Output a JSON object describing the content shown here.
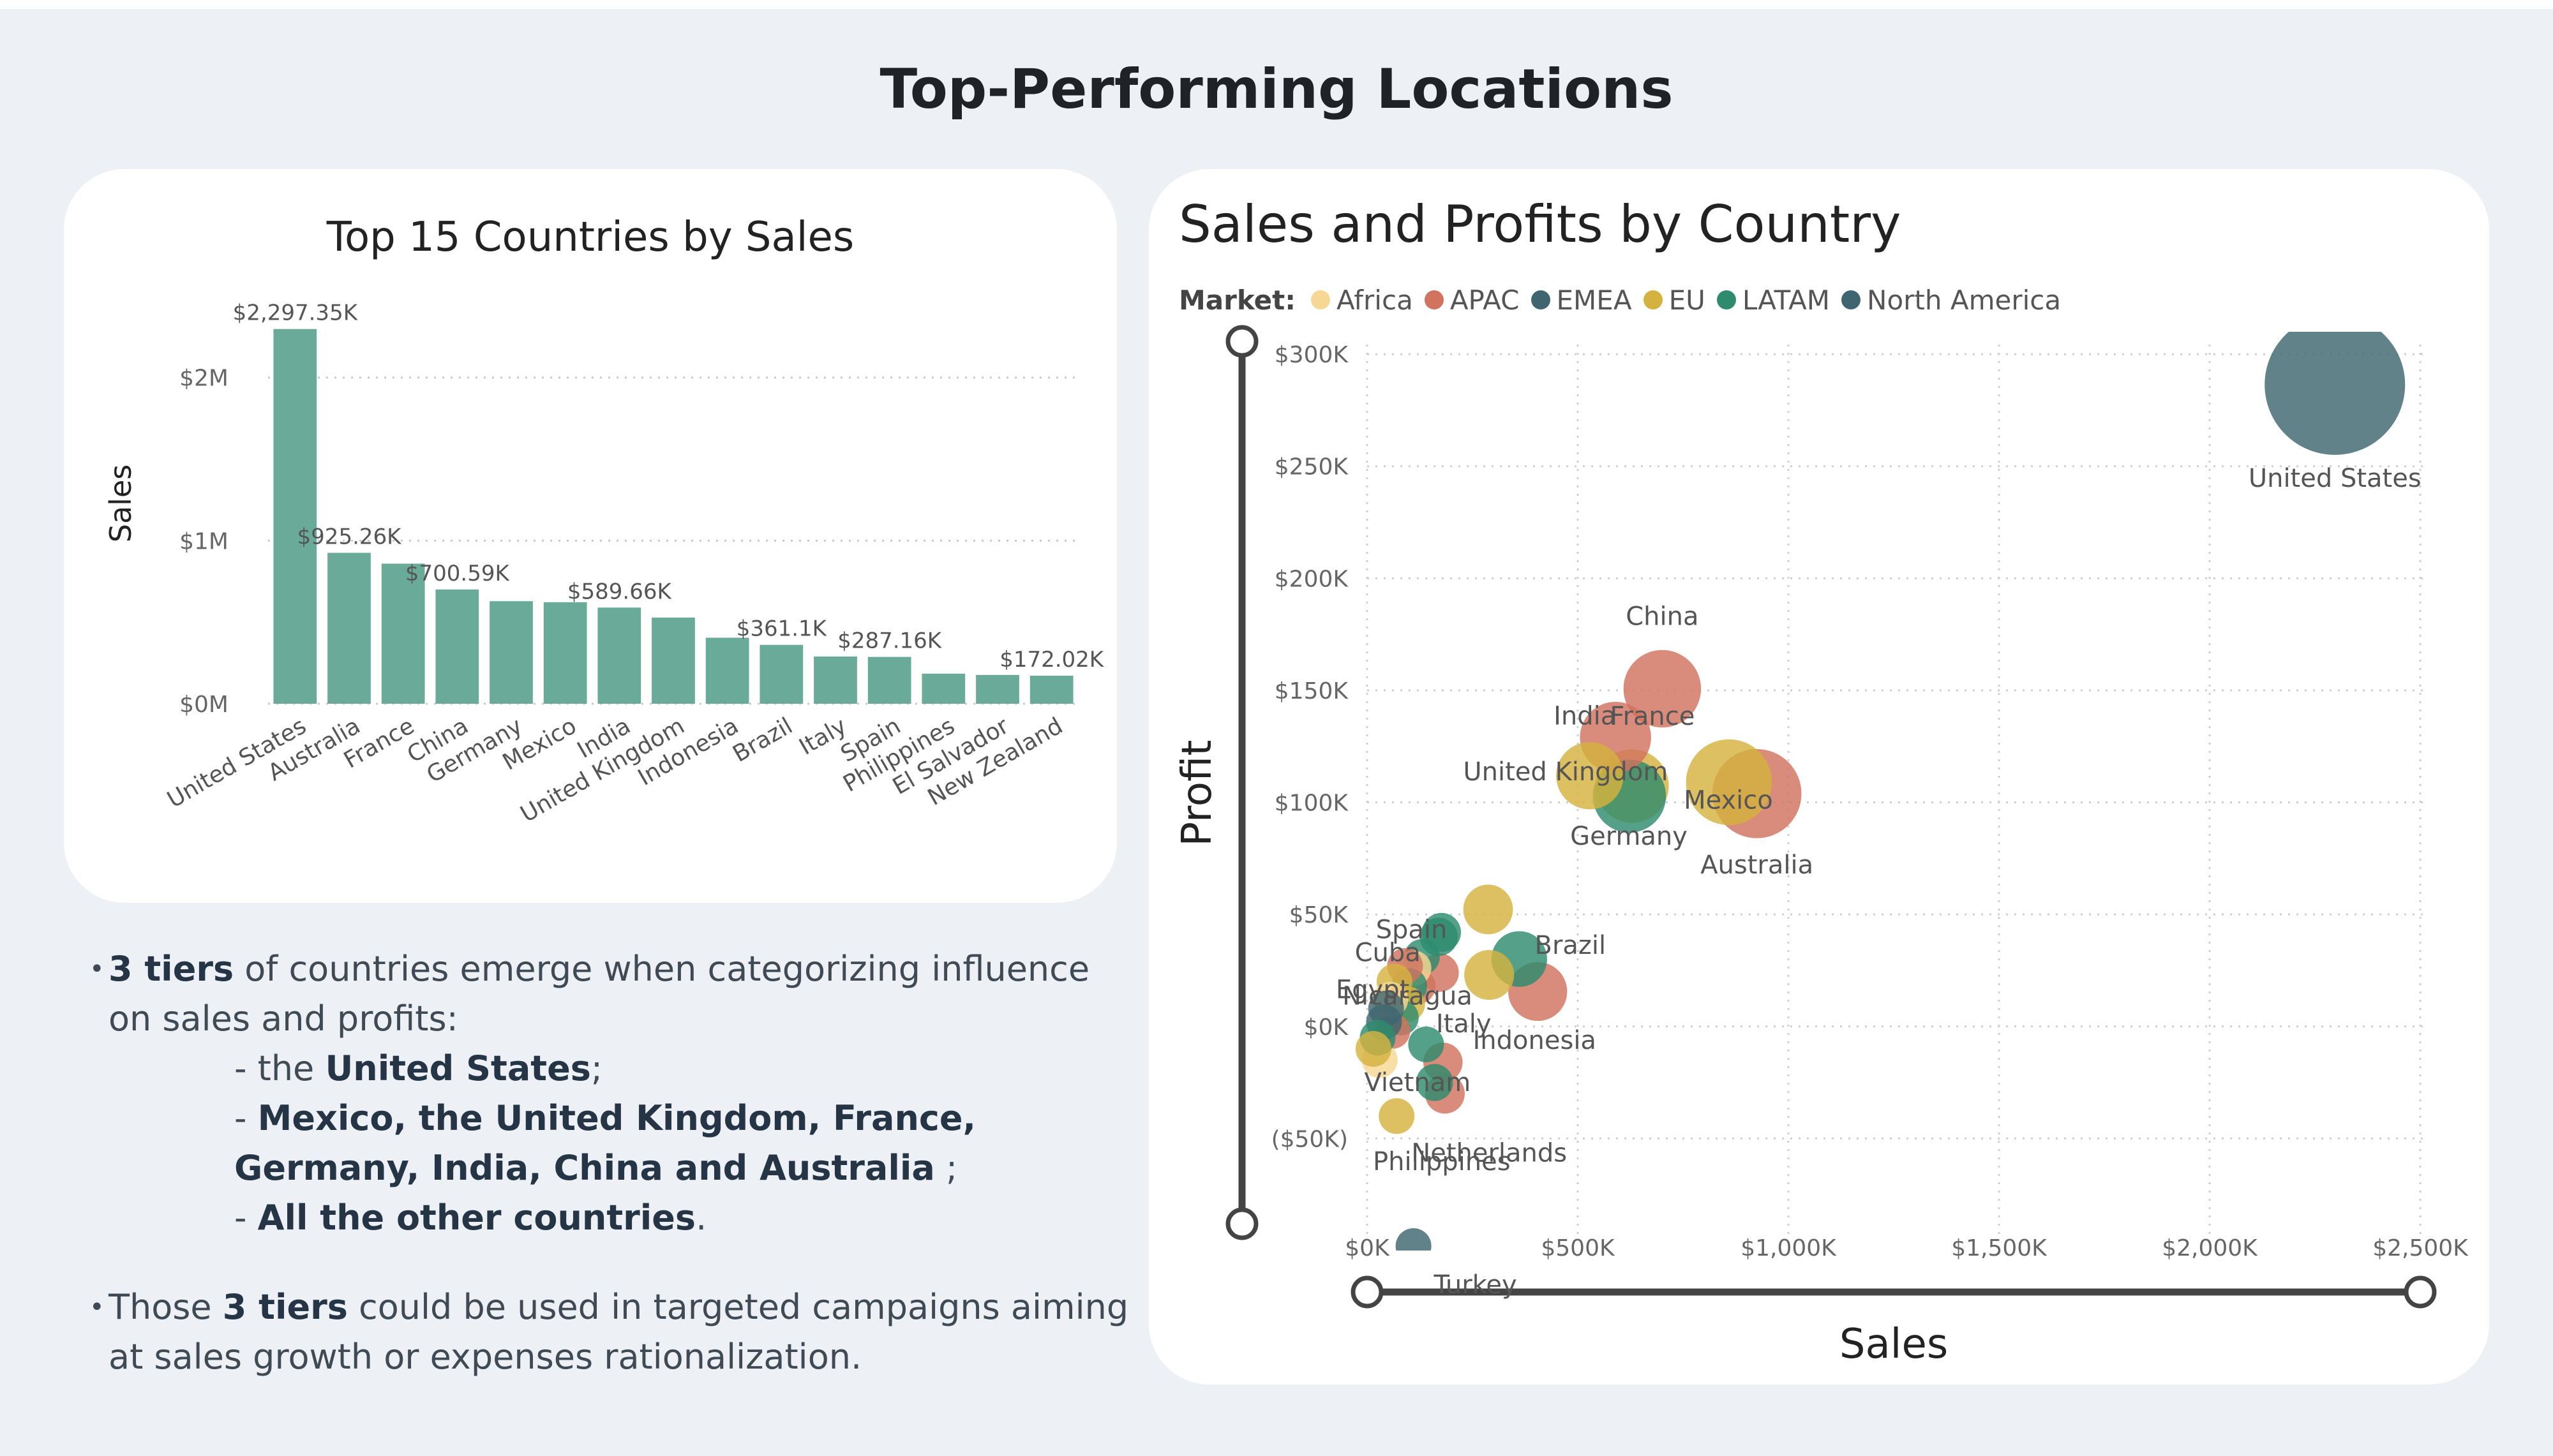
{
  "page": {
    "title": "Top-Performing Locations"
  },
  "bar_chart_card": {
    "title": "Top 15 Countries by Sales"
  },
  "scatter_card": {
    "title": "Sales and Profits by Country",
    "legend_label": "Market:"
  },
  "notes": {
    "bullet": "•",
    "p1_bold": "3 tiers",
    "p1_rest": " of countries emerge when categorizing influence on sales and profits:",
    "tier1_prefix": "- the ",
    "tier1_bold": "United States",
    "tier1_suffix": ";",
    "tier2_prefix": "- ",
    "tier2_bold": "Mexico, the United Kingdom, France, Germany, India, China and Australia",
    "tier2_suffix": " ;",
    "tier3_prefix": "- ",
    "tier3_bold": "All the other countries",
    "tier3_suffix": ".",
    "p2_prefix": " Those ",
    "p2_bold": "3 tiers",
    "p2_rest": " could be used in targeted campaigns aiming at sales growth or expenses rationalization."
  },
  "colors": {
    "bar": "#69aa98",
    "Africa": "#f7d794",
    "APAC": "#d1735e",
    "EMEA": "#3f6670",
    "EU": "#d4b23f",
    "LATAM": "#2e8b6e",
    "North America": "#3f6670"
  },
  "chart_data": [
    {
      "type": "bar",
      "title": "Top 15 Countries by Sales",
      "ylabel": "Sales",
      "ylim": [
        0,
        2300000
      ],
      "y_ticks": [
        0,
        1000000,
        2000000
      ],
      "y_tick_labels": [
        "$0M",
        "$1M",
        "$2M"
      ],
      "grid": true,
      "categories": [
        "United States",
        "Australia",
        "France",
        "China",
        "Germany",
        "Mexico",
        "India",
        "United Kingdom",
        "Indonesia",
        "Brazil",
        "Italy",
        "Spain",
        "Philippines",
        "El Salvador",
        "New Zealand"
      ],
      "values": [
        2297350,
        925260,
        858930,
        700590,
        628840,
        622590,
        589660,
        528580,
        404890,
        361100,
        289710,
        287160,
        184570,
        176580,
        172020
      ],
      "data_labels": [
        "$2,297.35K",
        "$925.26K",
        "",
        "$700.59K",
        "",
        "",
        "$589.66K",
        "",
        "",
        "$361.1K",
        "",
        "$287.16K",
        "",
        "",
        "$172.02K"
      ]
    },
    {
      "type": "scatter",
      "title": "Sales and Profits by Country",
      "xlabel": "Sales",
      "ylabel": "Profit",
      "xlim": [
        0,
        2500000
      ],
      "ylim": [
        -100000,
        310000
      ],
      "x_ticks": [
        0,
        500000,
        1000000,
        1500000,
        2000000,
        2500000
      ],
      "x_tick_labels": [
        "$0K",
        "$500K",
        "$1,000K",
        "$1,500K",
        "$2,000K",
        "$2,500K"
      ],
      "y_ticks": [
        -50000,
        0,
        50000,
        100000,
        150000,
        200000,
        250000,
        300000
      ],
      "y_tick_labels": [
        "($50K)",
        "$0K",
        "$50K",
        "$100K",
        "$150K",
        "$200K",
        "$250K",
        "$300K"
      ],
      "legend": [
        "Africa",
        "APAC",
        "EMEA",
        "EU",
        "LATAM",
        "North America"
      ],
      "grid": true,
      "points": [
        {
          "name": "United States",
          "market": "North America",
          "x": 2297350,
          "y": 286400,
          "label": "United States"
        },
        {
          "name": "Australia",
          "market": "APAC",
          "x": 925260,
          "y": 103900,
          "label": "Australia"
        },
        {
          "name": "France",
          "market": "EU",
          "x": 858930,
          "y": 109000,
          "label": "France"
        },
        {
          "name": "China",
          "market": "APAC",
          "x": 700590,
          "y": 150700,
          "label": "China"
        },
        {
          "name": "Germany",
          "market": "EU",
          "x": 628840,
          "y": 107300,
          "label": "Germany"
        },
        {
          "name": "Mexico",
          "market": "LATAM",
          "x": 622590,
          "y": 102800,
          "label": "Mexico"
        },
        {
          "name": "India",
          "market": "APAC",
          "x": 589660,
          "y": 129000,
          "label": "India"
        },
        {
          "name": "United Kingdom",
          "market": "EU",
          "x": 528580,
          "y": 111900,
          "label": "United Kingdom"
        },
        {
          "name": "Indonesia",
          "market": "APAC",
          "x": 404890,
          "y": 15600,
          "label": "Indonesia"
        },
        {
          "name": "Brazil",
          "market": "LATAM",
          "x": 361100,
          "y": 30100,
          "label": "Brazil"
        },
        {
          "name": "Italy",
          "market": "EU",
          "x": 289710,
          "y": 23000,
          "label": "Italy"
        },
        {
          "name": "Spain",
          "market": "EU",
          "x": 287160,
          "y": 52200,
          "label": "Spain"
        },
        {
          "name": "Cuba",
          "market": "LATAM",
          "x": 170000,
          "y": 40000,
          "label": "Cuba"
        },
        {
          "name": "Egypt",
          "market": "Africa",
          "x": 110000,
          "y": 26000,
          "label": "Egypt"
        },
        {
          "name": "Nicaragua",
          "market": "LATAM",
          "x": 100000,
          "y": 18000,
          "label": "Nicaragua"
        },
        {
          "name": "Vietnam",
          "market": "APAC",
          "x": 180000,
          "y": -16000,
          "label": "Vietnam"
        },
        {
          "name": "Philippines",
          "market": "APAC",
          "x": 184570,
          "y": -30000,
          "label": "Philippines"
        },
        {
          "name": "Netherlands",
          "market": "EU",
          "x": 70000,
          "y": -40000,
          "label": "Netherlands"
        },
        {
          "name": "Turkey",
          "market": "EMEA",
          "x": 110000,
          "y": -98000,
          "label": "Turkey"
        },
        {
          "name": "El Salvador",
          "market": "LATAM",
          "x": 176580,
          "y": 42000,
          "label": ""
        },
        {
          "name": "New Zealand",
          "market": "APAC",
          "x": 172020,
          "y": 24000,
          "label": ""
        },
        {
          "name": "other-1",
          "market": "LATAM",
          "x": 130000,
          "y": 31000,
          "label": ""
        },
        {
          "name": "other-2",
          "market": "APAC",
          "x": 120000,
          "y": 18000,
          "label": ""
        },
        {
          "name": "other-3",
          "market": "EU",
          "x": 95000,
          "y": 10000,
          "label": ""
        },
        {
          "name": "other-4",
          "market": "LATAM",
          "x": 80000,
          "y": 4000,
          "label": ""
        },
        {
          "name": "other-5",
          "market": "APAC",
          "x": 60000,
          "y": -2000,
          "label": ""
        },
        {
          "name": "other-6",
          "market": "EMEA",
          "x": 40000,
          "y": 2000,
          "label": ""
        },
        {
          "name": "other-7",
          "market": "LATAM",
          "x": 25000,
          "y": -5000,
          "label": ""
        },
        {
          "name": "other-8",
          "market": "EU",
          "x": 15000,
          "y": -10000,
          "label": ""
        },
        {
          "name": "other-9",
          "market": "Africa",
          "x": 30000,
          "y": -15000,
          "label": ""
        },
        {
          "name": "other-10",
          "market": "LATAM",
          "x": 140000,
          "y": -8000,
          "label": ""
        },
        {
          "name": "other-11",
          "market": "APAC",
          "x": 90000,
          "y": 27000,
          "label": ""
        },
        {
          "name": "other-12",
          "market": "EU",
          "x": 65000,
          "y": 20000,
          "label": ""
        },
        {
          "name": "other-13",
          "market": "Africa",
          "x": 55000,
          "y": 12000,
          "label": ""
        },
        {
          "name": "other-14",
          "market": "EMEA",
          "x": 45000,
          "y": 8000,
          "label": ""
        },
        {
          "name": "other-15",
          "market": "LATAM",
          "x": 160000,
          "y": -25000,
          "label": ""
        }
      ]
    }
  ]
}
